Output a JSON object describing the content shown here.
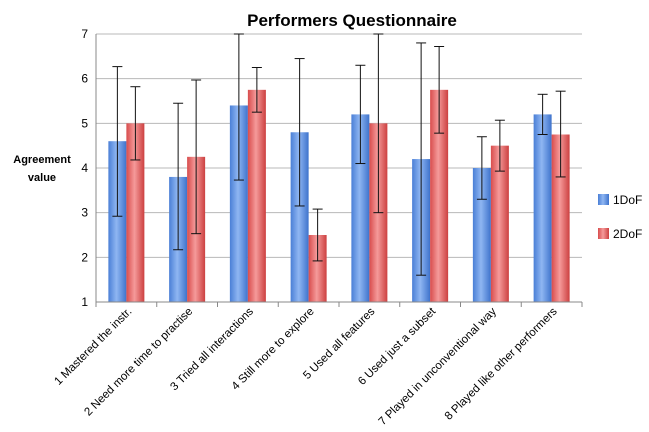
{
  "chart_data": {
    "type": "bar",
    "title": "Performers Questionnaire",
    "ylabel": "Agreement value",
    "xlabel": "",
    "ylim": [
      1,
      7
    ],
    "yticks": [
      1,
      2,
      3,
      4,
      5,
      6,
      7
    ],
    "grid": true,
    "legend": "right",
    "categories": [
      "1 Mastered the instr.",
      "2 Need more time to practise",
      "3 Tried all interactions",
      "4 Still more to explore",
      "5 Used all features",
      "6 Used just a subset",
      "7 Played in unconventional way",
      "8 Played like other performers"
    ],
    "series": [
      {
        "name": "1DoF",
        "color": "#5b8fe0",
        "values": [
          4.6,
          3.8,
          5.4,
          4.8,
          5.2,
          4.2,
          4.0,
          5.2
        ],
        "err_low": [
          2.92,
          2.17,
          3.73,
          3.15,
          4.1,
          1.6,
          3.3,
          4.75
        ],
        "err_high": [
          6.27,
          5.45,
          7.0,
          6.45,
          6.3,
          6.8,
          4.7,
          5.65
        ]
      },
      {
        "name": "2DoF",
        "color": "#e06060",
        "values": [
          5.0,
          4.25,
          5.75,
          2.5,
          5.0,
          5.75,
          4.5,
          4.75
        ],
        "err_low": [
          4.18,
          2.53,
          5.25,
          1.92,
          3.0,
          4.78,
          3.93,
          3.8
        ],
        "err_high": [
          5.82,
          5.97,
          6.25,
          3.08,
          7.0,
          6.72,
          5.07,
          5.72
        ]
      }
    ]
  }
}
